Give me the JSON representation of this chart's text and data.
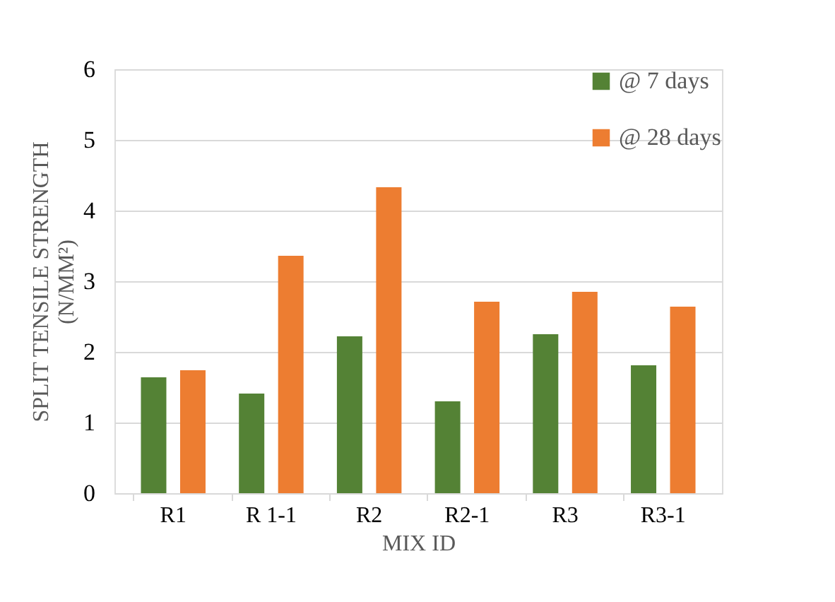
{
  "chart_data": {
    "type": "bar",
    "xlabel": "MIX ID",
    "ylabel": [
      "SPLIT TENSILE STRENGTH",
      "(N/MM²)"
    ],
    "categories": [
      "R1",
      "R 1-1",
      "R2",
      "R2-1",
      "R3",
      "R3-1"
    ],
    "series": [
      {
        "name": "@ 7 days",
        "color": "#548235",
        "values": [
          1.64,
          1.41,
          2.22,
          1.3,
          2.25,
          1.81
        ]
      },
      {
        "name": "@ 28 days",
        "color": "#ed7d31",
        "values": [
          1.74,
          3.36,
          4.33,
          2.71,
          2.85,
          2.64
        ]
      }
    ],
    "ylim": [
      0,
      6
    ],
    "yticks": [
      0,
      1,
      2,
      3,
      4,
      5,
      6
    ],
    "grid": "y",
    "legend": "top right"
  }
}
